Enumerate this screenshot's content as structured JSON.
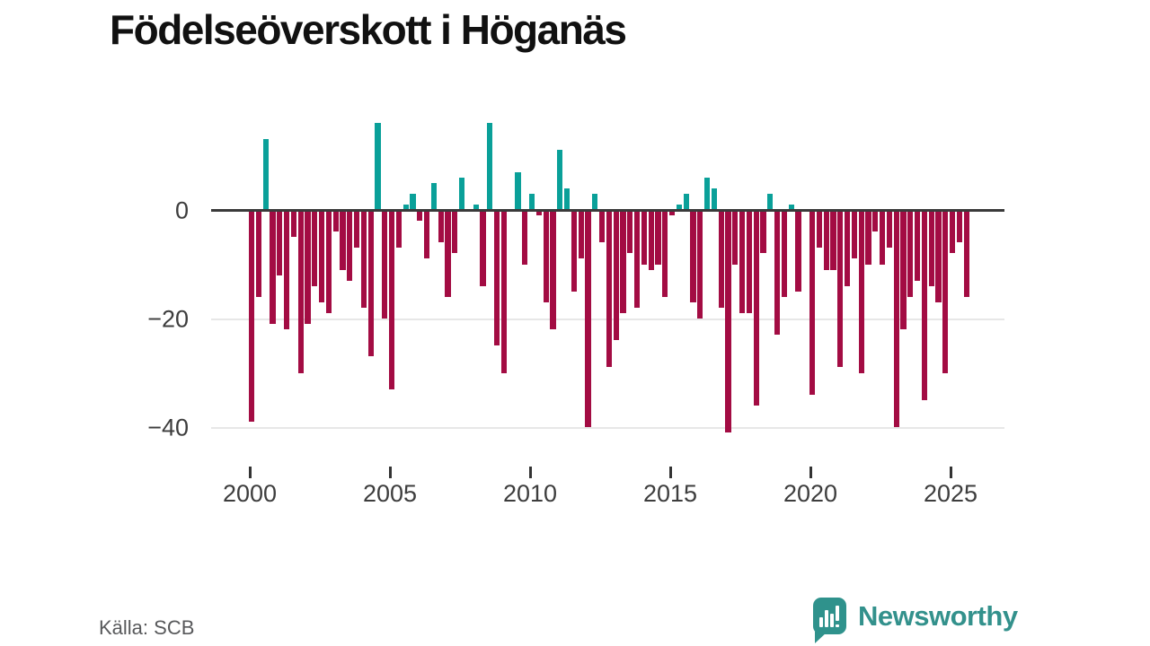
{
  "chart_data": {
    "type": "bar",
    "title": "Födelseöverskott i Höganäs",
    "xlabel": "",
    "ylabel": "",
    "frequency": "quarterly",
    "start_year": 2000,
    "start_quarter": 1,
    "values": [
      -39,
      -16,
      13,
      -21,
      -12,
      -22,
      -5,
      -30,
      -21,
      -14,
      -17,
      -19,
      -4,
      -11,
      -13,
      -7,
      -18,
      -27,
      16,
      -20,
      -33,
      -7,
      1,
      3,
      -2,
      -9,
      5,
      -6,
      -16,
      -8,
      6,
      0,
      1,
      -14,
      16,
      -25,
      -30,
      0,
      7,
      -10,
      3,
      -1,
      -17,
      -22,
      11,
      4,
      -15,
      -9,
      -40,
      3,
      -6,
      -29,
      -24,
      -19,
      -8,
      -18,
      -10,
      -11,
      -10,
      -16,
      -1,
      1,
      3,
      -17,
      -20,
      6,
      4,
      -18,
      -41,
      -10,
      -19,
      -19,
      -36,
      -8,
      3,
      -23,
      -16,
      1,
      -15,
      0,
      -34,
      -7,
      -11,
      -11,
      -29,
      -14,
      -9,
      -30,
      -10,
      -4,
      -10,
      -7,
      -40,
      -22,
      -16,
      -13,
      -35,
      -14,
      -17,
      -30,
      -8,
      -6,
      -16
    ],
    "x_tick_labels": [
      "2000",
      "2005",
      "2010",
      "2015",
      "2020",
      "2025"
    ],
    "y_ticks": [
      0,
      -20,
      -40
    ],
    "y_tick_labels": [
      "0",
      "−20",
      "−40"
    ],
    "ylim": [
      -44,
      17
    ],
    "grid": "horizontal",
    "legend": "none",
    "positive_color": "#0aa099",
    "negative_color": "#a30c43"
  },
  "footer": {
    "source": "Källa: SCB",
    "logo_text": "Newsworthy",
    "logo_color": "#2f928c"
  }
}
